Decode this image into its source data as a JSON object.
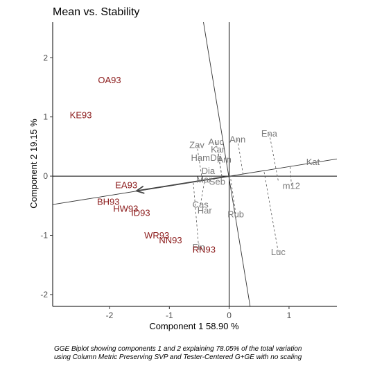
{
  "chart_data": {
    "type": "scatter",
    "title": "Mean vs. Stability",
    "xlabel": "Component 1 58.90 %",
    "ylabel": "Component 2 19.15 %",
    "xlim": [
      -2.95,
      1.8
    ],
    "ylim": [
      -2.2,
      2.6
    ],
    "xticks": [
      -2,
      -1,
      0,
      1
    ],
    "yticks": [
      -2,
      -1,
      0,
      1,
      2
    ],
    "grid": false,
    "caption_lines": [
      "GGE Biplot showing components 1 and 2 explaining 78.05% of the total variation",
      "using Column Metric Preserving SVP and Tester-Centered G+GE with no scaling"
    ],
    "genotypes": [
      {
        "label": "OA93",
        "x": -2.0,
        "y": 1.62
      },
      {
        "label": "KE93",
        "x": -2.48,
        "y": 1.03
      },
      {
        "label": "EA93",
        "x": -1.72,
        "y": -0.15
      },
      {
        "label": "BH93",
        "x": -2.02,
        "y": -0.43
      },
      {
        "label": "HW93",
        "x": -1.73,
        "y": -0.55
      },
      {
        "label": "ID93",
        "x": -1.48,
        "y": -0.62
      },
      {
        "label": "WR93",
        "x": -1.21,
        "y": -1.0
      },
      {
        "label": "NN93",
        "x": -0.98,
        "y": -1.08
      },
      {
        "label": "RN93",
        "x": -0.42,
        "y": -1.24
      }
    ],
    "environments": [
      {
        "label": "Ena",
        "x": 0.67,
        "y": 0.72
      },
      {
        "label": "Ann",
        "x": 0.14,
        "y": 0.62
      },
      {
        "label": "Auc",
        "x": -0.22,
        "y": 0.58
      },
      {
        "label": "Zav",
        "x": -0.54,
        "y": 0.53
      },
      {
        "label": "Kar",
        "x": -0.19,
        "y": 0.45
      },
      {
        "label": "Ham",
        "x": -0.48,
        "y": 0.31
      },
      {
        "label": "Dri",
        "x": -0.22,
        "y": 0.31
      },
      {
        "label": "Arn",
        "x": -0.08,
        "y": 0.28
      },
      {
        "label": "Dia",
        "x": -0.35,
        "y": 0.09
      },
      {
        "label": "Kat",
        "x": 1.4,
        "y": 0.24
      },
      {
        "label": "Mar",
        "x": -0.42,
        "y": -0.06
      },
      {
        "label": "Seb",
        "x": -0.2,
        "y": -0.09
      },
      {
        "label": "m12",
        "x": 1.04,
        "y": -0.16
      },
      {
        "label": "Cas",
        "x": -0.48,
        "y": -0.48
      },
      {
        "label": "Har",
        "x": -0.41,
        "y": -0.58
      },
      {
        "label": "Rub",
        "x": 0.11,
        "y": -0.64
      },
      {
        "label": "Fin",
        "x": -0.51,
        "y": -1.2
      },
      {
        "label": "Luc",
        "x": 0.82,
        "y": -1.28
      }
    ],
    "aec_abscissa": {
      "x1": -2.95,
      "y1": -0.48,
      "x2": 1.8,
      "y2": 0.29
    },
    "aec_ordinate": {
      "x1": -0.43,
      "y1": 2.6,
      "x2": 0.35,
      "y2": -2.2
    },
    "arrow": {
      "x": -1.55,
      "y": -0.25
    },
    "projections": [
      {
        "from": [
          0.67,
          0.72
        ],
        "to": [
          0.82,
          -0.08
        ]
      },
      {
        "from": [
          0.14,
          0.62
        ],
        "to": [
          0.23,
          0.04
        ]
      },
      {
        "from": [
          -0.22,
          0.58
        ],
        "to": [
          -0.12,
          -0.02
        ]
      },
      {
        "from": [
          -0.19,
          0.45
        ],
        "to": [
          -0.12,
          -0.02
        ]
      },
      {
        "from": [
          -0.54,
          0.53
        ],
        "to": [
          -0.45,
          -0.07
        ]
      },
      {
        "from": [
          1.04,
          -0.16
        ],
        "to": [
          1.02,
          0.16
        ]
      },
      {
        "from": [
          -0.48,
          -0.48
        ],
        "to": [
          -0.41,
          -0.07
        ]
      },
      {
        "from": [
          -0.51,
          -1.2
        ],
        "to": [
          -0.6,
          -0.1
        ]
      },
      {
        "from": [
          0.82,
          -1.28
        ],
        "to": [
          0.58,
          0.09
        ]
      },
      {
        "from": [
          0.11,
          -0.64
        ],
        "to": [
          0.02,
          -0.01
        ]
      }
    ]
  }
}
